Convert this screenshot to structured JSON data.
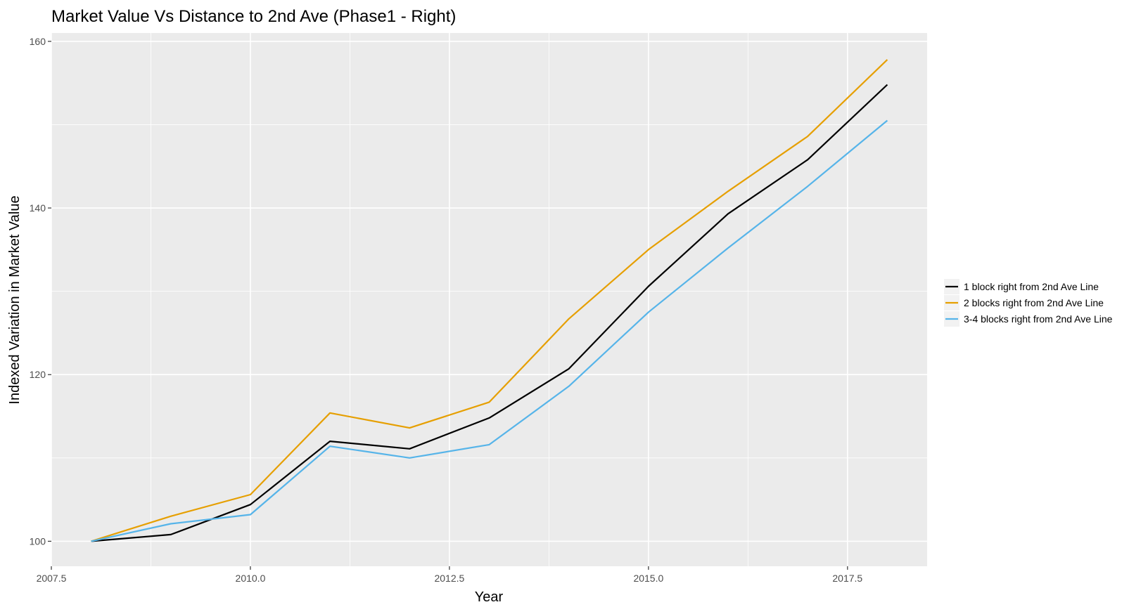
{
  "chart_data": {
    "type": "line",
    "title": "Market Value Vs Distance to 2nd Ave (Phase1 - Right)",
    "xlabel": "Year",
    "ylabel": "Indexed Variation in Market Value",
    "xlim": [
      2007.5,
      2018.5
    ],
    "ylim": [
      97,
      161
    ],
    "x_ticks": [
      2007.5,
      2010.0,
      2012.5,
      2015.0,
      2017.5
    ],
    "x_tick_labels": [
      "2007.5",
      "2010.0",
      "2012.5",
      "2015.0",
      "2017.5"
    ],
    "y_ticks": [
      100,
      120,
      140,
      160
    ],
    "y_tick_labels": [
      "100",
      "120",
      "140",
      "160"
    ],
    "grid": true,
    "legend_position": "right",
    "x": [
      2008,
      2009,
      2010,
      2011,
      2012,
      2013,
      2014,
      2015,
      2016,
      2017,
      2018
    ],
    "series": [
      {
        "name": "1 block right from 2nd Ave Line",
        "color": "#000000",
        "values": [
          100,
          100.8,
          104.4,
          112.0,
          111.1,
          114.8,
          120.7,
          130.6,
          139.3,
          145.8,
          154.8
        ]
      },
      {
        "name": "2 blocks right from 2nd Ave Line",
        "color": "#E69F00",
        "values": [
          100,
          103.0,
          105.6,
          115.4,
          113.6,
          116.7,
          126.7,
          135.0,
          142.0,
          148.6,
          157.8
        ]
      },
      {
        "name": "3-4 blocks right from 2nd Ave Line",
        "color": "#56B4E9",
        "values": [
          100,
          102.1,
          103.2,
          111.4,
          110.0,
          111.6,
          118.6,
          127.5,
          135.2,
          142.6,
          150.5
        ]
      }
    ]
  }
}
